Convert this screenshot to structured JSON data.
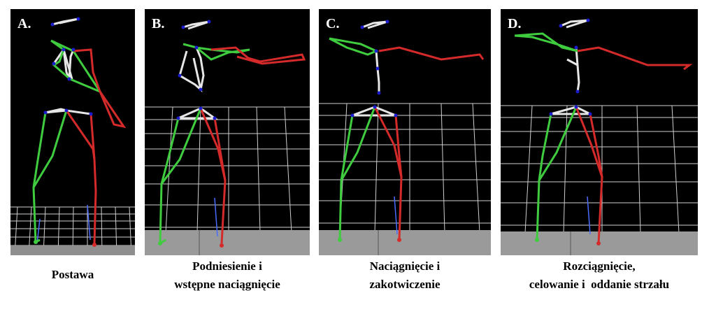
{
  "panels": [
    {
      "label": "A.",
      "caption_lines": [
        "Postawa"
      ]
    },
    {
      "label": "B.",
      "caption_lines": [
        "Podniesienie i",
        "wstępne naciągnięcie"
      ]
    },
    {
      "label": "C.",
      "caption_lines": [
        "Naciągnięcie i",
        "zakotwiczenie"
      ]
    },
    {
      "label": "D.",
      "caption_lines": [
        "Rozciągnięcie,",
        "celowanie i  oddanie strzału"
      ]
    }
  ],
  "colors": {
    "background": "#000000",
    "left_limbs": "#3fcc3f",
    "right_limbs": "#d42a2a",
    "spine": "#e6e6e6",
    "joint": "#1c1ccf",
    "grid": "#cfcfcf",
    "floor": "#9a9a9a"
  }
}
